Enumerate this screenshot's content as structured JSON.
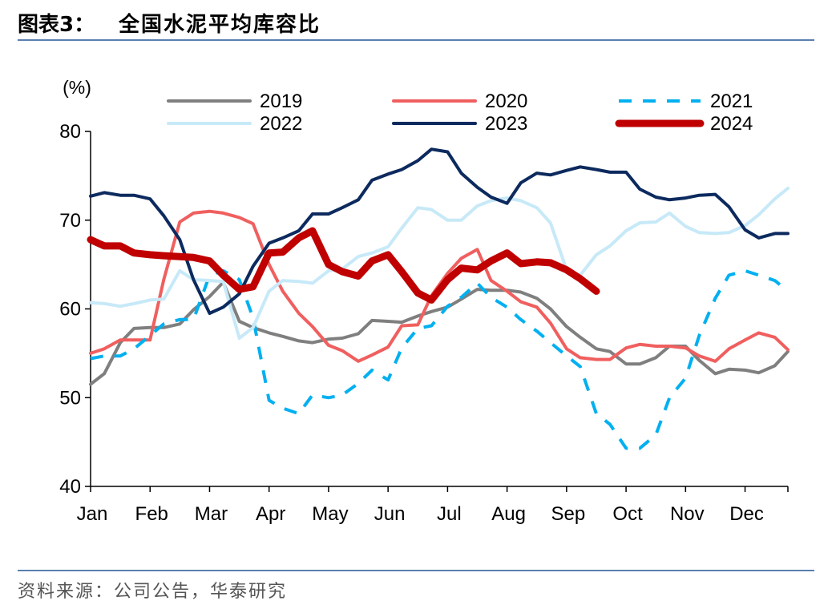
{
  "header": {
    "prefix": "图表3：",
    "title": "全国水泥平均库容比"
  },
  "source": "资料来源：公司公告，华泰研究",
  "chart_data": {
    "type": "line",
    "unit_label": "(%)",
    "ylim": [
      40,
      80
    ],
    "yticks": [
      40,
      50,
      60,
      70,
      80
    ],
    "x_axis_labels": [
      "Jan",
      "Feb",
      "Mar",
      "Apr",
      "May",
      "Jun",
      "Jul",
      "Aug",
      "Sep",
      "Oct",
      "Nov",
      "Dec"
    ],
    "x_range": [
      1,
      12.72
    ],
    "grid": false,
    "legend_position": "top",
    "series": [
      {
        "name": "2019",
        "color": "#7f7f7f",
        "style": "solid",
        "width": 4,
        "x": [
          1.0,
          1.23,
          1.5,
          1.73,
          2.0,
          2.23,
          2.5,
          2.73,
          3.0,
          3.23,
          3.5,
          3.73,
          4.0,
          4.23,
          4.5,
          4.73,
          5.0,
          5.23,
          5.5,
          5.73,
          6.0,
          6.23,
          6.5,
          6.73,
          7.0,
          7.23,
          7.5,
          7.73,
          8.0,
          8.23,
          8.5,
          8.73,
          9.0,
          9.23,
          9.5,
          9.73,
          10.0,
          10.23,
          10.5,
          10.73,
          11.0,
          11.23,
          11.5,
          11.73,
          12.0,
          12.23,
          12.5,
          12.72
        ],
        "values": [
          51.5,
          52.7,
          56.2,
          57.8,
          57.9,
          57.9,
          58.3,
          59.9,
          61.4,
          63.0,
          58.6,
          57.9,
          57.3,
          56.9,
          56.4,
          56.2,
          56.6,
          56.7,
          57.2,
          58.7,
          58.6,
          58.5,
          59.2,
          59.7,
          60.2,
          61.1,
          62.2,
          62.1,
          62.1,
          61.9,
          61.2,
          60.0,
          58.0,
          56.8,
          55.5,
          55.2,
          53.8,
          53.8,
          54.5,
          55.8,
          55.8,
          54.2,
          52.7,
          53.2,
          53.1,
          52.8,
          53.6,
          55.2
        ]
      },
      {
        "name": "2020",
        "color": "#f05f5f",
        "style": "solid",
        "width": 4,
        "x": [
          1.0,
          1.23,
          1.5,
          1.73,
          2.0,
          2.23,
          2.5,
          2.73,
          3.0,
          3.23,
          3.5,
          3.73,
          4.0,
          4.23,
          4.5,
          4.73,
          5.0,
          5.23,
          5.5,
          5.73,
          6.0,
          6.23,
          6.5,
          6.73,
          7.0,
          7.23,
          7.5,
          7.73,
          8.0,
          8.23,
          8.5,
          8.73,
          9.0,
          9.23,
          9.5,
          9.73,
          10.0,
          10.23,
          10.5,
          10.73,
          11.0,
          11.23,
          11.5,
          11.73,
          12.0,
          12.23,
          12.5,
          12.72
        ],
        "values": [
          55.0,
          55.5,
          56.5,
          56.5,
          56.5,
          63.3,
          69.8,
          70.8,
          71.0,
          70.8,
          70.3,
          69.6,
          65.0,
          62.0,
          59.5,
          58.0,
          55.9,
          55.3,
          54.1,
          54.8,
          55.7,
          58.1,
          58.2,
          61.5,
          64.0,
          65.7,
          66.7,
          63.2,
          62.0,
          60.8,
          60.2,
          58.4,
          55.5,
          54.5,
          54.3,
          54.3,
          55.6,
          56.0,
          55.8,
          55.8,
          55.6,
          54.7,
          54.1,
          55.5,
          56.5,
          57.3,
          56.8,
          55.4
        ]
      },
      {
        "name": "2021",
        "color": "#00b0f0",
        "style": "dashed",
        "width": 4,
        "x": [
          1.0,
          1.23,
          1.5,
          1.73,
          2.0,
          2.23,
          2.5,
          2.73,
          3.0,
          3.23,
          3.5,
          3.73,
          4.0,
          4.23,
          4.5,
          4.73,
          5.0,
          5.23,
          5.5,
          5.73,
          6.0,
          6.23,
          6.5,
          6.73,
          7.0,
          7.23,
          7.5,
          7.73,
          8.0,
          8.23,
          8.5,
          8.73,
          9.0,
          9.23,
          9.5,
          9.73,
          10.0,
          10.23,
          10.5,
          10.73,
          11.0,
          11.23,
          11.5,
          11.73,
          12.0,
          12.23,
          12.5,
          12.72
        ],
        "values": [
          54.4,
          54.7,
          54.7,
          55.5,
          57.0,
          58.3,
          58.8,
          58.8,
          63.8,
          64.3,
          63.3,
          59.0,
          49.7,
          48.8,
          48.2,
          50.3,
          50.0,
          50.3,
          51.6,
          53.1,
          52.0,
          55.6,
          57.8,
          58.1,
          60.3,
          61.3,
          62.9,
          61.3,
          60.2,
          58.8,
          57.5,
          56.2,
          54.7,
          53.5,
          48.2,
          47.0,
          44.3,
          44.3,
          45.8,
          50.0,
          52.2,
          57.0,
          61.2,
          63.8,
          64.3,
          63.8,
          63.2,
          62.0
        ]
      },
      {
        "name": "2022",
        "color": "#c7e9f8",
        "style": "solid",
        "width": 4,
        "x": [
          1.0,
          1.23,
          1.5,
          1.73,
          2.0,
          2.23,
          2.5,
          2.73,
          3.0,
          3.23,
          3.5,
          3.73,
          4.0,
          4.23,
          4.5,
          4.73,
          5.0,
          5.23,
          5.5,
          5.73,
          6.0,
          6.23,
          6.5,
          6.73,
          7.0,
          7.23,
          7.5,
          7.73,
          8.0,
          8.23,
          8.5,
          8.73,
          9.0,
          9.23,
          9.5,
          9.73,
          10.0,
          10.23,
          10.5,
          10.73,
          11.0,
          11.23,
          11.5,
          11.73,
          12.0,
          12.23,
          12.5,
          12.72
        ],
        "values": [
          60.7,
          60.6,
          60.3,
          60.6,
          61.0,
          61.1,
          64.3,
          63.3,
          63.2,
          63.1,
          56.7,
          57.9,
          62.0,
          63.2,
          63.1,
          62.9,
          64.3,
          64.5,
          65.9,
          66.3,
          67.0,
          69.1,
          71.4,
          71.2,
          70.0,
          70.0,
          71.6,
          72.2,
          72.5,
          72.2,
          71.4,
          69.7,
          64.4,
          63.8,
          66.1,
          67.1,
          68.8,
          69.7,
          69.8,
          70.8,
          69.3,
          68.6,
          68.5,
          68.6,
          69.4,
          70.6,
          72.4,
          73.6
        ]
      },
      {
        "name": "2023",
        "color": "#0c2a5e",
        "style": "solid",
        "width": 4,
        "x": [
          1.0,
          1.23,
          1.5,
          1.73,
          2.0,
          2.23,
          2.5,
          2.73,
          3.0,
          3.23,
          3.5,
          3.73,
          4.0,
          4.23,
          4.5,
          4.73,
          5.0,
          5.23,
          5.5,
          5.73,
          6.0,
          6.23,
          6.5,
          6.73,
          7.0,
          7.23,
          7.5,
          7.73,
          8.0,
          8.23,
          8.5,
          8.73,
          9.0,
          9.23,
          9.5,
          9.73,
          10.0,
          10.23,
          10.5,
          10.73,
          11.0,
          11.23,
          11.5,
          11.73,
          12.0,
          12.23,
          12.5,
          12.72
        ],
        "values": [
          72.7,
          73.1,
          72.8,
          72.8,
          72.4,
          70.5,
          67.8,
          63.3,
          59.5,
          60.2,
          61.7,
          64.8,
          67.4,
          68.0,
          68.8,
          70.7,
          70.7,
          71.4,
          72.3,
          74.5,
          75.2,
          75.7,
          76.7,
          78.0,
          77.7,
          75.3,
          73.7,
          72.6,
          71.9,
          74.2,
          75.3,
          75.1,
          75.6,
          76.0,
          75.7,
          75.4,
          75.4,
          73.5,
          72.6,
          72.3,
          72.5,
          72.8,
          72.9,
          71.5,
          68.9,
          68.0,
          68.5,
          68.5
        ]
      },
      {
        "name": "2024",
        "color": "#c00000",
        "style": "solid",
        "width": 9,
        "x": [
          1.0,
          1.23,
          1.5,
          1.73,
          2.0,
          2.23,
          2.5,
          2.73,
          3.0,
          3.23,
          3.5,
          3.73,
          4.0,
          4.23,
          4.5,
          4.73,
          5.0,
          5.23,
          5.5,
          5.73,
          6.0,
          6.23,
          6.5,
          6.73,
          7.0,
          7.23,
          7.5,
          7.73,
          8.0,
          8.23,
          8.5,
          8.73,
          9.0,
          9.23,
          9.5
        ],
        "values": [
          67.8,
          67.1,
          67.1,
          66.3,
          66.1,
          66.0,
          65.9,
          65.8,
          65.4,
          63.8,
          62.2,
          62.5,
          66.3,
          66.4,
          68.0,
          68.8,
          65.0,
          64.2,
          63.7,
          65.4,
          66.1,
          64.2,
          61.8,
          61.0,
          63.3,
          64.6,
          64.4,
          65.4,
          66.3,
          65.1,
          65.3,
          65.2,
          64.4,
          63.4,
          62.0
        ]
      }
    ]
  }
}
